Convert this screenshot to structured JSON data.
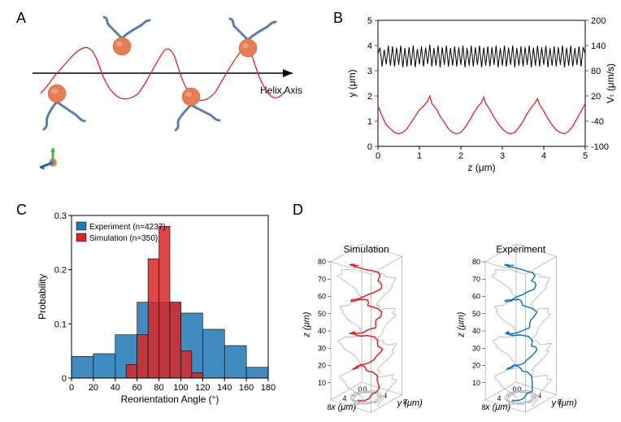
{
  "panelA": {
    "label": "A",
    "helix_axis_text": "Helix Axis",
    "trajectory_color": "#d62728",
    "flagellum_color": "#5b7fa8",
    "cell_body_color": "#e67e55",
    "axis_color": "#000000",
    "icon_arrow_colors": [
      "#2e7d32",
      "#1565c0",
      "#c62828"
    ]
  },
  "panelB": {
    "label": "B",
    "xlabel": "z (μm)",
    "ylabel_left": "y (μm)",
    "ylabel_right": "Vₜ (μm/s)",
    "xlim": [
      0,
      5
    ],
    "ylim_left": [
      0,
      5
    ],
    "ylim_right": [
      -100,
      200
    ],
    "x_ticks": [
      0,
      1,
      2,
      3,
      4,
      5
    ],
    "y_ticks_left": [
      0,
      1,
      2,
      3,
      4,
      5
    ],
    "y_ticks_right": [
      -100,
      -40,
      20,
      80,
      140,
      200
    ],
    "left_series_color": "#d62728",
    "right_series_color": "#000000",
    "left_label_color": "#d62728",
    "right_label_color": "#555555",
    "left_tick_color": "#d62728",
    "right_tick_color": "#555555",
    "background_color": "#ffffff",
    "left_series": [
      [
        0.0,
        1.6
      ],
      [
        0.1,
        1.2
      ],
      [
        0.2,
        0.85
      ],
      [
        0.3,
        0.7
      ],
      [
        0.4,
        0.55
      ],
      [
        0.5,
        0.5
      ],
      [
        0.6,
        0.55
      ],
      [
        0.7,
        0.7
      ],
      [
        0.8,
        0.95
      ],
      [
        0.9,
        1.2
      ],
      [
        1.0,
        1.45
      ],
      [
        1.1,
        1.6
      ],
      [
        1.2,
        1.8
      ],
      [
        1.25,
        2.0
      ],
      [
        1.3,
        1.7
      ],
      [
        1.4,
        1.5
      ],
      [
        1.5,
        1.2
      ],
      [
        1.6,
        0.95
      ],
      [
        1.7,
        0.7
      ],
      [
        1.8,
        0.55
      ],
      [
        1.9,
        0.5
      ],
      [
        2.0,
        0.55
      ],
      [
        2.1,
        0.75
      ],
      [
        2.2,
        1.0
      ],
      [
        2.3,
        1.3
      ],
      [
        2.4,
        1.55
      ],
      [
        2.5,
        1.75
      ],
      [
        2.55,
        1.95
      ],
      [
        2.6,
        1.7
      ],
      [
        2.7,
        1.45
      ],
      [
        2.8,
        1.15
      ],
      [
        2.9,
        0.9
      ],
      [
        3.0,
        0.7
      ],
      [
        3.1,
        0.55
      ],
      [
        3.2,
        0.5
      ],
      [
        3.3,
        0.55
      ],
      [
        3.4,
        0.75
      ],
      [
        3.5,
        1.0
      ],
      [
        3.6,
        1.3
      ],
      [
        3.7,
        1.55
      ],
      [
        3.8,
        1.75
      ],
      [
        3.85,
        1.9
      ],
      [
        3.9,
        1.65
      ],
      [
        4.0,
        1.4
      ],
      [
        4.1,
        1.1
      ],
      [
        4.2,
        0.85
      ],
      [
        4.3,
        0.65
      ],
      [
        4.4,
        0.55
      ],
      [
        4.5,
        0.5
      ],
      [
        4.6,
        0.6
      ],
      [
        4.7,
        0.8
      ],
      [
        4.8,
        1.1
      ],
      [
        4.9,
        1.4
      ],
      [
        5.0,
        1.7
      ]
    ],
    "right_series": [
      [
        0.0,
        120
      ],
      [
        0.05,
        135
      ],
      [
        0.1,
        90
      ],
      [
        0.15,
        130
      ],
      [
        0.2,
        95
      ],
      [
        0.25,
        140
      ],
      [
        0.3,
        92
      ],
      [
        0.35,
        138
      ],
      [
        0.4,
        90
      ],
      [
        0.45,
        135
      ],
      [
        0.5,
        94
      ],
      [
        0.55,
        140
      ],
      [
        0.6,
        88
      ],
      [
        0.65,
        134
      ],
      [
        0.7,
        90
      ],
      [
        0.75,
        136
      ],
      [
        0.8,
        92
      ],
      [
        0.85,
        140
      ],
      [
        0.9,
        88
      ],
      [
        0.95,
        132
      ],
      [
        1.0,
        95
      ],
      [
        1.05,
        138
      ],
      [
        1.1,
        90
      ],
      [
        1.15,
        135
      ],
      [
        1.2,
        96
      ],
      [
        1.25,
        142
      ],
      [
        1.3,
        90
      ],
      [
        1.35,
        134
      ],
      [
        1.4,
        92
      ],
      [
        1.45,
        140
      ],
      [
        1.5,
        88
      ],
      [
        1.55,
        136
      ],
      [
        1.6,
        94
      ],
      [
        1.65,
        140
      ],
      [
        1.7,
        90
      ],
      [
        1.75,
        134
      ],
      [
        1.8,
        92
      ],
      [
        1.85,
        138
      ],
      [
        1.9,
        90
      ],
      [
        1.95,
        136
      ],
      [
        2.0,
        94
      ],
      [
        2.05,
        140
      ],
      [
        2.1,
        88
      ],
      [
        2.15,
        134
      ],
      [
        2.2,
        92
      ],
      [
        2.25,
        140
      ],
      [
        2.3,
        90
      ],
      [
        2.35,
        136
      ],
      [
        2.4,
        94
      ],
      [
        2.45,
        140
      ],
      [
        2.5,
        88
      ],
      [
        2.55,
        135
      ],
      [
        2.6,
        92
      ],
      [
        2.65,
        138
      ],
      [
        2.7,
        90
      ],
      [
        2.75,
        136
      ],
      [
        2.8,
        94
      ],
      [
        2.85,
        140
      ],
      [
        2.9,
        88
      ],
      [
        2.95,
        134
      ],
      [
        3.0,
        92
      ],
      [
        3.05,
        140
      ],
      [
        3.1,
        90
      ],
      [
        3.15,
        135
      ],
      [
        3.2,
        94
      ],
      [
        3.25,
        140
      ],
      [
        3.3,
        88
      ],
      [
        3.35,
        134
      ],
      [
        3.4,
        92
      ],
      [
        3.45,
        138
      ],
      [
        3.5,
        90
      ],
      [
        3.55,
        136
      ],
      [
        3.6,
        94
      ],
      [
        3.65,
        140
      ],
      [
        3.7,
        88
      ],
      [
        3.75,
        135
      ],
      [
        3.8,
        92
      ],
      [
        3.85,
        140
      ],
      [
        3.9,
        90
      ],
      [
        3.95,
        136
      ],
      [
        4.0,
        94
      ],
      [
        4.05,
        140
      ],
      [
        4.1,
        88
      ],
      [
        4.15,
        134
      ],
      [
        4.2,
        92
      ],
      [
        4.25,
        138
      ],
      [
        4.3,
        90
      ],
      [
        4.35,
        136
      ],
      [
        4.4,
        94
      ],
      [
        4.45,
        140
      ],
      [
        4.5,
        88
      ],
      [
        4.55,
        135
      ],
      [
        4.6,
        92
      ],
      [
        4.65,
        140
      ],
      [
        4.7,
        90
      ],
      [
        4.75,
        134
      ],
      [
        4.8,
        94
      ],
      [
        4.85,
        138
      ],
      [
        4.9,
        90
      ],
      [
        4.95,
        136
      ],
      [
        5.0,
        120
      ]
    ]
  },
  "panelC": {
    "label": "C",
    "xlabel": "Reorientation Angle (°)",
    "ylabel": "Probability",
    "xlim": [
      0,
      180
    ],
    "ylim": [
      0,
      0.3
    ],
    "x_ticks": [
      0,
      20,
      40,
      60,
      80,
      100,
      120,
      140,
      160,
      180
    ],
    "y_ticks": [
      0,
      0.1,
      0.2,
      0.3
    ],
    "legend_experiment": "Experiment (n=4237)",
    "legend_simulation": "Simulation (n=350)",
    "exp_color": "#1f77b4",
    "sim_color": "#d62728",
    "bar_edge_color": "#000000",
    "bar_alpha": 0.85,
    "exp_bar_width_deg": 20,
    "sim_bar_width_deg": 10,
    "experiment_bars": [
      {
        "x": 10,
        "p": 0.04
      },
      {
        "x": 30,
        "p": 0.045
      },
      {
        "x": 50,
        "p": 0.08
      },
      {
        "x": 70,
        "p": 0.14
      },
      {
        "x": 90,
        "p": 0.14
      },
      {
        "x": 110,
        "p": 0.12
      },
      {
        "x": 130,
        "p": 0.09
      },
      {
        "x": 150,
        "p": 0.06
      },
      {
        "x": 170,
        "p": 0.02
      }
    ],
    "simulation_bars": [
      {
        "x": 55,
        "p": 0.025
      },
      {
        "x": 65,
        "p": 0.08
      },
      {
        "x": 75,
        "p": 0.22
      },
      {
        "x": 85,
        "p": 0.28
      },
      {
        "x": 95,
        "p": 0.14
      },
      {
        "x": 105,
        "p": 0.05
      },
      {
        "x": 115,
        "p": 0.01
      }
    ]
  },
  "panelD": {
    "label": "D",
    "title_sim": "Simulation",
    "title_exp": "Experiment",
    "sim_color": "#d62728",
    "exp_color": "#1f77b4",
    "shadow_color": "#bdbdbd",
    "axis_color": "#000000",
    "xlabel": "x (μm)",
    "ylabel": "y (μm)",
    "zlabel": "z (μm)",
    "z_ticks": [
      10,
      20,
      30,
      40,
      50,
      60,
      70,
      80
    ],
    "x_ticks": [
      0,
      4,
      8
    ],
    "y_ticks": [
      0,
      4,
      8
    ],
    "xlim": [
      0,
      8
    ],
    "ylim": [
      0,
      8
    ],
    "zlim": [
      0,
      80
    ],
    "title_fontsize": 12,
    "tick_fontsize": 9
  }
}
